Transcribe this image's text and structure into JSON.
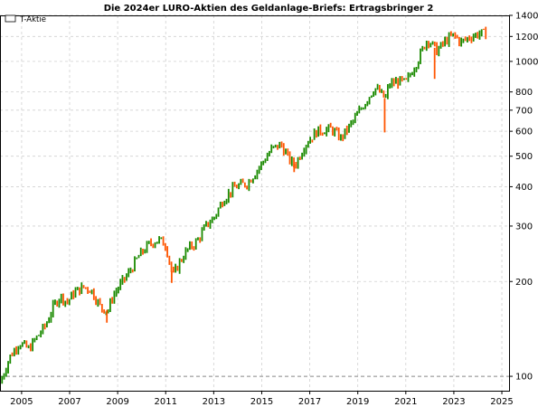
{
  "chart_data": {
    "type": "ohlc",
    "title": "Die 2024er LURO-Aktien des Geldanlage-Briefs: Ertragsbringer 2",
    "xlabel": "",
    "ylabel": "",
    "y_scale": "log",
    "ylim": [
      90,
      1400
    ],
    "xlim": [
      2004.1,
      2025.3
    ],
    "grid": true,
    "legend": {
      "position": "top-left",
      "entries": [
        "T-Aktie"
      ]
    },
    "reference_line": 100,
    "x_ticks": [
      "2005",
      "2007",
      "2009",
      "2011",
      "2013",
      "2015",
      "2017",
      "2019",
      "2021",
      "2023",
      "2025"
    ],
    "y_ticks": [
      "100",
      "200",
      "300",
      "400",
      "500",
      "600",
      "700",
      "800",
      "1000",
      "1200",
      "1400"
    ],
    "colors": {
      "up": "#1a8a00",
      "down": "#ff5500",
      "grid": "#d0d0d0",
      "reference": "#888888"
    },
    "series": [
      {
        "name": "T-Aktie",
        "anchors": [
          [
            2004.1,
            95
          ],
          [
            2004.5,
            115
          ],
          [
            2004.9,
            128
          ],
          [
            2005.3,
            122
          ],
          [
            2005.6,
            132
          ],
          [
            2006.0,
            145
          ],
          [
            2006.3,
            165
          ],
          [
            2006.6,
            180
          ],
          [
            2006.9,
            172
          ],
          [
            2007.2,
            185
          ],
          [
            2007.6,
            192
          ],
          [
            2007.9,
            188
          ],
          [
            2008.3,
            165
          ],
          [
            2008.6,
            162
          ],
          [
            2008.8,
            180
          ],
          [
            2009.0,
            190
          ],
          [
            2009.5,
            215
          ],
          [
            2009.9,
            242
          ],
          [
            2010.3,
            262
          ],
          [
            2010.7,
            272
          ],
          [
            2011.0,
            262
          ],
          [
            2011.3,
            208
          ],
          [
            2011.6,
            232
          ],
          [
            2011.9,
            252
          ],
          [
            2012.3,
            268
          ],
          [
            2012.7,
            302
          ],
          [
            2013.0,
            318
          ],
          [
            2013.4,
            365
          ],
          [
            2013.9,
            400
          ],
          [
            2014.4,
            410
          ],
          [
            2014.9,
            462
          ],
          [
            2015.4,
            525
          ],
          [
            2015.8,
            545
          ],
          [
            2016.2,
            480
          ],
          [
            2016.4,
            470
          ],
          [
            2016.8,
            545
          ],
          [
            2017.3,
            600
          ],
          [
            2017.9,
            610
          ],
          [
            2018.3,
            570
          ],
          [
            2018.8,
            645
          ],
          [
            2019.3,
            740
          ],
          [
            2019.7,
            825
          ],
          [
            2019.9,
            800
          ],
          [
            2020.15,
            760
          ],
          [
            2020.3,
            845
          ],
          [
            2020.7,
            865
          ],
          [
            2021.0,
            855
          ],
          [
            2021.5,
            1010
          ],
          [
            2021.9,
            1180
          ],
          [
            2022.3,
            1080
          ],
          [
            2022.7,
            1170
          ],
          [
            2023.0,
            1210
          ],
          [
            2023.3,
            1150
          ],
          [
            2023.7,
            1200
          ],
          [
            2024.1,
            1230
          ],
          [
            2024.4,
            1215
          ]
        ]
      }
    ]
  }
}
